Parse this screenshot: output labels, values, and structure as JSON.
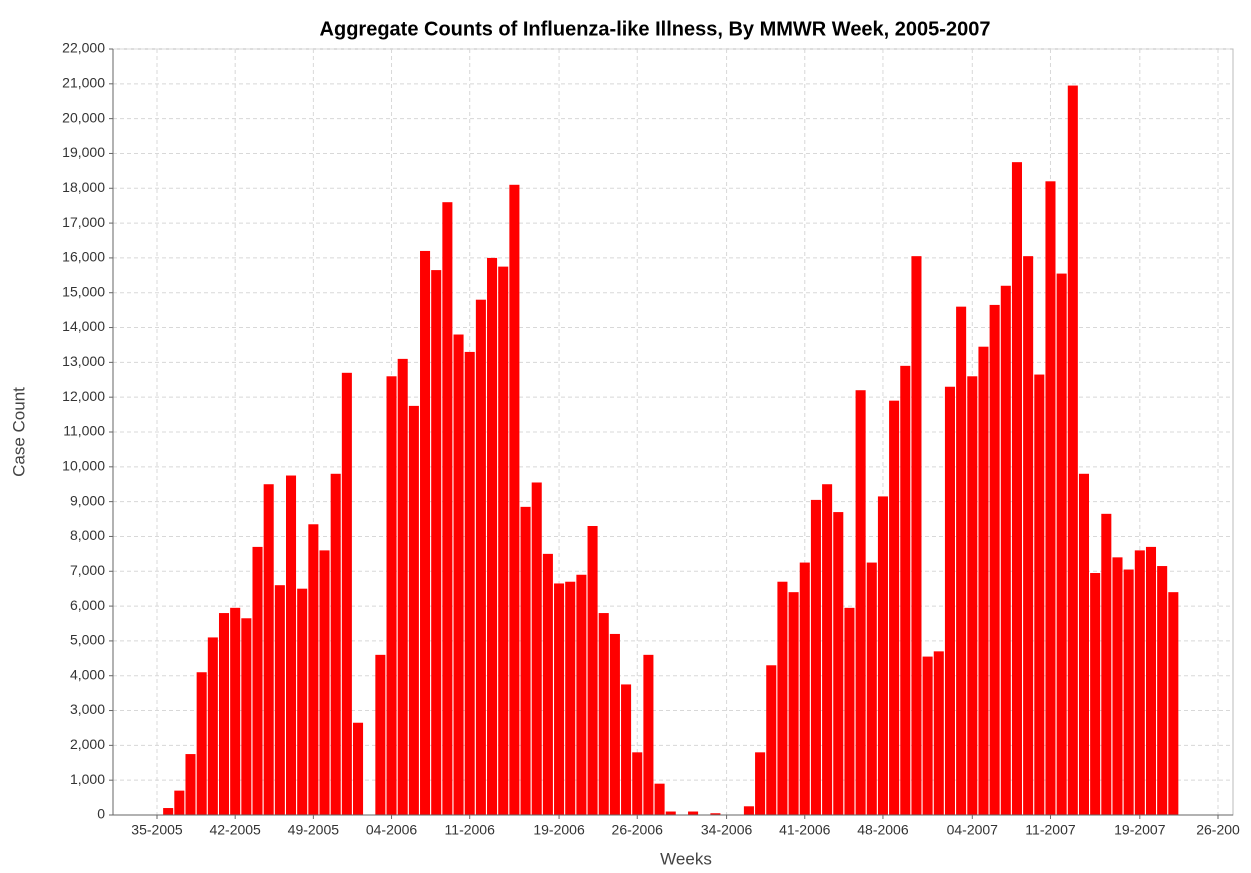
{
  "chart_data": {
    "type": "bar",
    "title": "Aggregate Counts of Influenza-like Illness, By MMWR Week, 2005-2007",
    "x_label": "Weeks",
    "y_label": "Case Count",
    "categories": [
      "35-2005",
      null,
      null,
      null,
      null,
      null,
      null,
      "42-2005",
      null,
      null,
      null,
      null,
      null,
      null,
      "49-2005",
      null,
      null,
      null,
      null,
      null,
      null,
      "04-2006",
      null,
      null,
      null,
      null,
      null,
      null,
      "11-2006",
      null,
      null,
      null,
      null,
      null,
      null,
      null,
      "19-2006",
      null,
      null,
      null,
      null,
      null,
      null,
      "26-2006",
      null,
      null,
      null,
      null,
      null,
      null,
      null,
      "34-2006",
      null,
      null,
      null,
      null,
      null,
      null,
      "41-2006",
      null,
      null,
      null,
      null,
      null,
      null,
      "48-2006",
      null,
      null,
      null,
      null,
      null,
      null,
      null,
      "04-2007",
      null,
      null,
      null,
      null,
      null,
      null,
      "11-2007",
      null,
      null,
      null,
      null,
      null,
      null,
      null,
      "19-2007",
      null,
      null,
      null,
      null,
      null,
      null,
      "26-200"
    ],
    "values": [
      null,
      200,
      700,
      1750,
      4100,
      5100,
      5800,
      5950,
      5650,
      7700,
      9500,
      6600,
      9750,
      6500,
      8350,
      7600,
      9800,
      12700,
      2650,
      0,
      4600,
      12600,
      13100,
      11750,
      16200,
      15650,
      17600,
      13800,
      13300,
      14800,
      16000,
      15750,
      18100,
      8850,
      9550,
      7500,
      6650,
      6700,
      6900,
      8300,
      5800,
      5200,
      3750,
      1800,
      4600,
      900,
      100,
      0,
      100,
      0,
      50,
      0,
      0,
      250,
      1800,
      4300,
      6700,
      6400,
      7250,
      9050,
      9500,
      8700,
      5950,
      12200,
      7250,
      9150,
      11900,
      12900,
      16050,
      4550,
      4700,
      12300,
      14600,
      12600,
      13450,
      14650,
      15200,
      18750,
      16050,
      12650,
      18200,
      15550,
      20950,
      9800,
      6950,
      8650,
      7400,
      7050,
      7600,
      7700,
      7150,
      6400,
      null,
      null,
      null,
      null
    ],
    "color": "#ff0000",
    "ylim": [
      0,
      22000
    ],
    "yticks": [
      0,
      {
        "value": 1000,
        "label": "1,000"
      },
      {
        "value": 2000,
        "label": "2,000"
      },
      {
        "value": 3000,
        "label": "3,000"
      },
      {
        "value": 4000,
        "label": "4,000"
      },
      {
        "value": 5000,
        "label": "5,000"
      },
      {
        "value": 6000,
        "label": "6,000"
      },
      {
        "value": 7000,
        "label": "7,000"
      },
      {
        "value": 8000,
        "label": "8,000"
      },
      {
        "value": 9000,
        "label": "9,000"
      },
      {
        "value": 10000,
        "label": "10,000"
      },
      {
        "value": 11000,
        "label": "11,000"
      },
      {
        "value": 12000,
        "label": "12,000"
      },
      {
        "value": 13000,
        "label": "13,000"
      },
      {
        "value": 14000,
        "label": "14,000"
      },
      {
        "value": 15000,
        "label": "15,000"
      },
      {
        "value": 16000,
        "label": "16,000"
      },
      {
        "value": 17000,
        "label": "17,000"
      },
      {
        "value": 18000,
        "label": "18,000"
      },
      {
        "value": 19000,
        "label": "19,000"
      },
      {
        "value": 20000,
        "label": "20,000"
      },
      {
        "value": 21000,
        "label": "21,000"
      },
      {
        "value": 22000,
        "label": "22,000"
      }
    ],
    "grid": true
  }
}
